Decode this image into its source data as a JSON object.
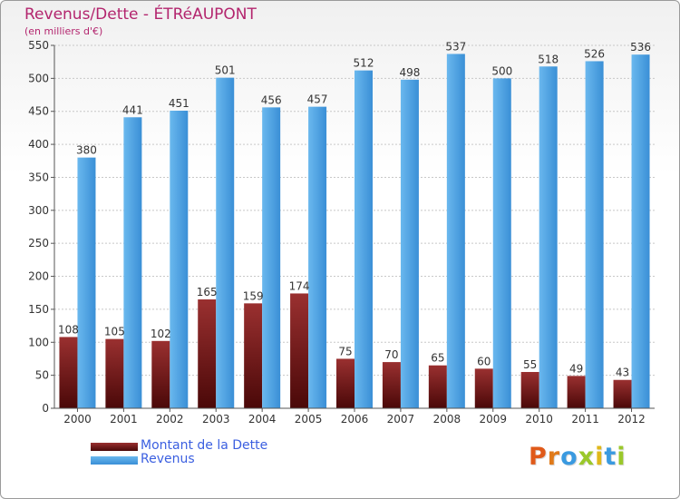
{
  "title": "Revenus/Dette - ÉTRéAUPONT",
  "subtitle": "(en milliers d'€)",
  "colors": {
    "title": "#b3256e",
    "debt": "#7a1a1a",
    "revenue": "#4aa3e3",
    "legend_text": "#3b5fe0"
  },
  "legend": {
    "debt_label": "Montant de la Dette",
    "revenue_label": "Revenus"
  },
  "logo": {
    "letters": [
      "P",
      "r",
      "o",
      "x",
      "i",
      "t",
      "i"
    ],
    "colors": [
      "#e05a1a",
      "#e07a1a",
      "#3a9ae0",
      "#9ac82a",
      "#e0b81a",
      "#3a9ae0",
      "#9ac82a"
    ]
  },
  "chart_data": {
    "type": "bar",
    "categories": [
      "2000",
      "2001",
      "2002",
      "2003",
      "2004",
      "2005",
      "2006",
      "2007",
      "2008",
      "2009",
      "2010",
      "2011",
      "2012"
    ],
    "series": [
      {
        "name": "Montant de la Dette",
        "values": [
          108,
          105,
          102,
          165,
          159,
          174,
          75,
          70,
          65,
          60,
          55,
          49,
          43
        ]
      },
      {
        "name": "Revenus",
        "values": [
          380,
          441,
          451,
          501,
          456,
          457,
          512,
          498,
          537,
          500,
          518,
          526,
          536
        ]
      }
    ],
    "yticks": [
      0,
      50,
      100,
      150,
      200,
      250,
      300,
      350,
      400,
      450,
      500,
      550
    ],
    "ylim": [
      0,
      550
    ],
    "grid": true,
    "legend_position": "bottom-left"
  }
}
